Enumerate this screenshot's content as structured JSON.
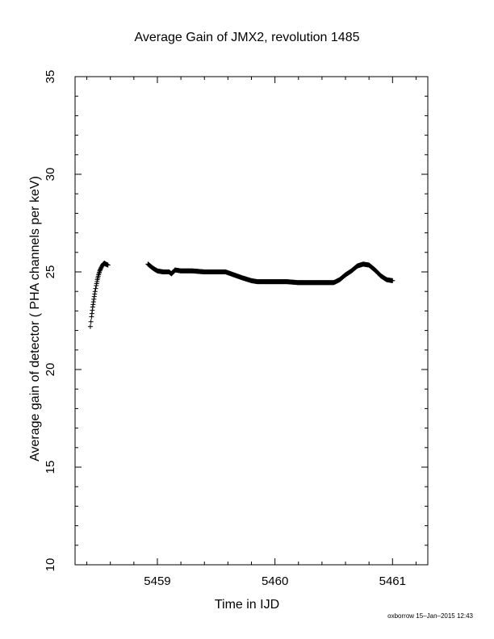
{
  "chart_data": {
    "type": "scatter",
    "title": "Average Gain of JMX2, revolution 1485",
    "xlabel": "Time in IJD",
    "ylabel": "Average gain of detector ( PHA channels per keV)",
    "footer": "oxborrow 15–Jan–2015 12:43",
    "xlim": [
      5458.3,
      5461.3
    ],
    "ylim": [
      10,
      35
    ],
    "xticks": [
      5459,
      5460,
      5461
    ],
    "yticks": [
      10,
      15,
      20,
      25,
      30,
      35
    ],
    "marker": "plus",
    "grid": false,
    "colors": {
      "marker": "#000000",
      "axes": "#000000"
    },
    "series": [
      {
        "x": [
          5458.43,
          5458.44,
          5458.45,
          5458.46,
          5458.47,
          5458.48,
          5458.49,
          5458.5,
          5458.51,
          5458.52,
          5458.53,
          5458.54,
          5458.55,
          5458.56,
          5458.58,
          5458.92,
          5458.96,
          5459.0,
          5459.05,
          5459.1,
          5459.12,
          5459.15,
          5459.2,
          5459.3,
          5459.4,
          5459.5,
          5459.58,
          5459.65,
          5459.72,
          5459.8,
          5459.85,
          5459.9,
          5460.0,
          5460.1,
          5460.2,
          5460.3,
          5460.4,
          5460.5,
          5460.55,
          5460.6,
          5460.65,
          5460.7,
          5460.75,
          5460.8,
          5460.85,
          5460.9,
          5460.95,
          5461.0
        ],
        "y": [
          22.2,
          22.7,
          23.2,
          23.6,
          24.0,
          24.3,
          24.6,
          24.85,
          25.05,
          25.2,
          25.3,
          25.4,
          25.45,
          25.4,
          25.35,
          25.4,
          25.2,
          25.05,
          25.0,
          25.0,
          24.9,
          25.1,
          25.05,
          25.05,
          25.0,
          25.0,
          25.0,
          24.85,
          24.7,
          24.55,
          24.5,
          24.5,
          24.5,
          24.5,
          24.45,
          24.45,
          24.45,
          24.45,
          24.6,
          24.85,
          25.05,
          25.3,
          25.4,
          25.35,
          25.1,
          24.8,
          24.6,
          24.55
        ]
      }
    ]
  }
}
